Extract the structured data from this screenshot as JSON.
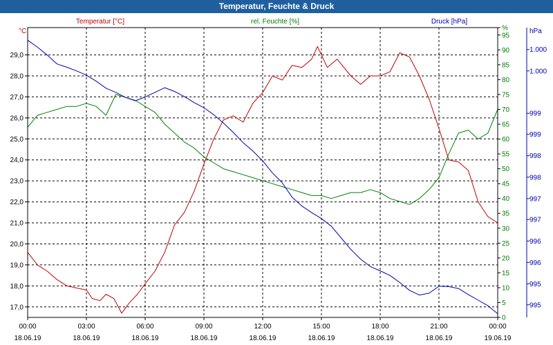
{
  "window": {
    "title": "Temperatur, Feuchte & Druck"
  },
  "colors": {
    "temperature": "#c00000",
    "humidity": "#008000",
    "pressure": "#0000b0",
    "grid": "#000000",
    "title_bar": "#1f5f9e"
  },
  "chart_data": {
    "type": "line",
    "title": "Temperatur, Feuchte & Druck",
    "grid": true,
    "x_ticks": [
      {
        "time": "00:00",
        "date": "18.06.19"
      },
      {
        "time": "03:00",
        "date": "18.06.19"
      },
      {
        "time": "06:00",
        "date": "18.06.19"
      },
      {
        "time": "09:00",
        "date": "18.06.19"
      },
      {
        "time": "12:00",
        "date": "18.06.19"
      },
      {
        "time": "15:00",
        "date": "18.06.19"
      },
      {
        "time": "18:00",
        "date": "18.06.19"
      },
      {
        "time": "21:00",
        "date": "18.06.19"
      },
      {
        "time": "00:00",
        "date": "19.06.19"
      }
    ],
    "x_range_hours": [
      0,
      24
    ],
    "axes": {
      "temperature": {
        "unit": "°C",
        "range": [
          16.5,
          30.3
        ],
        "ticks": [
          "17,0",
          "18,0",
          "19,0",
          "20,0",
          "21,0",
          "22,0",
          "23,0",
          "24,0",
          "25,0",
          "26,0",
          "27,0",
          "28,0",
          "29,0"
        ],
        "tick_values": [
          17,
          18,
          19,
          20,
          21,
          22,
          23,
          24,
          25,
          26,
          27,
          28,
          29
        ]
      },
      "humidity": {
        "unit": "%",
        "range": [
          0,
          97.5
        ],
        "ticks": [
          "0",
          "5",
          "10",
          "15",
          "20",
          "25",
          "30",
          "35",
          "40",
          "45",
          "50",
          "55",
          "60",
          "65",
          "70",
          "75",
          "80",
          "85",
          "90",
          "95",
          "%"
        ],
        "tick_values": [
          0,
          5,
          10,
          15,
          20,
          25,
          30,
          35,
          40,
          45,
          50,
          55,
          60,
          65,
          70,
          75,
          80,
          85,
          90,
          95,
          97.5
        ]
      },
      "pressure": {
        "unit": "hPa",
        "range": [
          994.55,
          1000.77
        ],
        "ticks": [
          "995",
          "995",
          "996",
          "996",
          "997",
          "997",
          "998",
          "998",
          "999",
          "999",
          "1.000",
          "1.000"
        ],
        "tick_values": [
          994.82,
          995.27,
          995.73,
          996.19,
          996.65,
          997.1,
          997.56,
          998.02,
          998.48,
          998.93,
          999.84,
          1000.3
        ]
      }
    },
    "series": [
      {
        "name": "Temperatur [°C]",
        "axis": "temperature",
        "x_hours": [
          0,
          0.5,
          1,
          1.5,
          2,
          2.5,
          3,
          3.3,
          3.7,
          4,
          4.4,
          4.8,
          5.2,
          5.6,
          6,
          6.5,
          7,
          7.5,
          8,
          8.5,
          9,
          9.5,
          10,
          10.5,
          11,
          11.5,
          12,
          12.5,
          13,
          13.5,
          14,
          14.5,
          14.8,
          15.3,
          15.8,
          16.5,
          17,
          17.5,
          18,
          18.5,
          19,
          19.5,
          20,
          20.5,
          21,
          21.5,
          22,
          22.5,
          23,
          23.5,
          24
        ],
        "values": [
          19.6,
          19.0,
          18.7,
          18.3,
          18.0,
          17.9,
          17.8,
          17.4,
          17.3,
          17.6,
          17.4,
          16.7,
          17.2,
          17.6,
          18.1,
          18.7,
          19.6,
          20.9,
          21.5,
          22.5,
          23.8,
          25.0,
          25.9,
          26.1,
          25.8,
          26.7,
          27.2,
          28.0,
          27.8,
          28.5,
          28.4,
          28.8,
          29.4,
          28.4,
          28.8,
          28.0,
          27.6,
          28.0,
          28.0,
          28.2,
          29.1,
          28.9,
          28.0,
          26.9,
          25.5,
          24.0,
          23.9,
          23.5,
          22.0,
          21.3,
          21.0
        ]
      },
      {
        "name": "rel. Feuchte [%]",
        "axis": "humidity",
        "x_hours": [
          0,
          0.5,
          1,
          1.5,
          2,
          2.5,
          3,
          3.5,
          4,
          4.5,
          5,
          5.5,
          6,
          6.5,
          7,
          7.5,
          8,
          8.5,
          9,
          9.5,
          10,
          10.5,
          11,
          11.5,
          12,
          12.5,
          13,
          13.5,
          14,
          14.5,
          15,
          15.5,
          16,
          16.5,
          17,
          17.5,
          18,
          18.5,
          19,
          19.5,
          20,
          20.5,
          21,
          21.5,
          22,
          22.5,
          23,
          23.5,
          24
        ],
        "values": [
          64,
          68,
          69,
          70,
          71,
          71,
          72,
          71,
          68,
          75,
          74,
          73,
          71,
          69,
          65,
          62,
          59,
          57,
          54,
          52,
          50,
          49,
          48,
          47,
          46,
          45,
          44,
          43,
          42,
          41,
          41,
          40,
          41,
          42,
          42,
          43,
          42,
          40,
          39,
          38,
          40,
          43,
          47,
          55,
          62,
          63,
          60,
          62,
          70
        ]
      },
      {
        "name": "Druck [hPa]",
        "axis": "pressure",
        "x_hours": [
          0,
          0.5,
          1,
          1.5,
          2,
          2.5,
          3,
          3.5,
          4,
          4.5,
          5,
          5.5,
          6,
          6.5,
          7,
          7.5,
          8,
          8.5,
          9,
          9.5,
          10,
          10.5,
          11,
          11.5,
          12,
          12.5,
          13,
          13.5,
          14,
          14.5,
          15,
          15.5,
          16,
          16.5,
          17,
          17.5,
          18,
          18.5,
          19,
          19.5,
          20,
          20.5,
          21,
          21.5,
          22,
          22.5,
          23,
          23.5,
          24
        ],
        "values": [
          1000.5,
          1000.35,
          1000.18,
          999.99,
          999.92,
          999.84,
          999.75,
          999.62,
          999.47,
          999.38,
          999.27,
          999.2,
          999.28,
          999.38,
          999.48,
          999.4,
          999.29,
          999.16,
          999.05,
          998.9,
          998.72,
          998.52,
          998.3,
          998.12,
          997.91,
          997.65,
          997.44,
          997.13,
          996.94,
          996.8,
          996.67,
          996.51,
          996.26,
          996.01,
          995.8,
          995.64,
          995.55,
          995.45,
          995.3,
          995.13,
          995.03,
          995.07,
          995.22,
          995.21,
          995.17,
          995.04,
          994.92,
          994.8,
          994.63
        ]
      }
    ]
  }
}
